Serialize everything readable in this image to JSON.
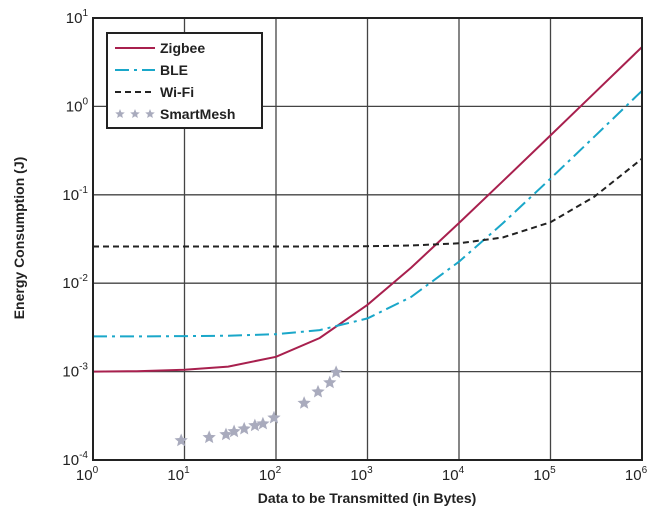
{
  "chart_data": {
    "type": "line",
    "xlabel": "Data to be Transmitted (in Bytes)",
    "ylabel": "Energy Consumption (J)",
    "xscale": "log",
    "yscale": "log",
    "xlim": [
      1,
      1000000
    ],
    "ylim": [
      0.0001,
      10
    ],
    "grid": true,
    "legend_position": "top-left",
    "x_ticks": [
      {
        "base": "10",
        "exp": "0"
      },
      {
        "base": "10",
        "exp": "1"
      },
      {
        "base": "10",
        "exp": "2"
      },
      {
        "base": "10",
        "exp": "3"
      },
      {
        "base": "10",
        "exp": "4"
      },
      {
        "base": "10",
        "exp": "5"
      },
      {
        "base": "10",
        "exp": "6"
      }
    ],
    "y_ticks": [
      {
        "base": "10",
        "exp": "1"
      },
      {
        "base": "10",
        "exp": "0"
      },
      {
        "base": "10",
        "exp": "-1"
      },
      {
        "base": "10",
        "exp": "-2"
      },
      {
        "base": "10",
        "exp": "-3"
      },
      {
        "base": "10",
        "exp": "-4"
      }
    ],
    "x": [
      1,
      3,
      10,
      30,
      100,
      300,
      1000,
      3000,
      10000,
      30000,
      100000,
      300000,
      1000000
    ],
    "series": [
      {
        "name": "Zigbee",
        "style": "solid",
        "color": "#a8204e",
        "values": [
          0.001,
          0.00101,
          0.00105,
          0.00114,
          0.00147,
          0.0024,
          0.0057,
          0.015,
          0.048,
          0.142,
          0.47,
          1.41,
          4.7
        ]
      },
      {
        "name": "BLE",
        "style": "dash-dot",
        "color": "#1aa7c9",
        "values": [
          0.0025,
          0.0025,
          0.00252,
          0.00255,
          0.00265,
          0.00295,
          0.004,
          0.007,
          0.0175,
          0.0475,
          0.1525,
          0.4525,
          1.5
        ]
      },
      {
        "name": "Wi-Fi",
        "style": "dashed",
        "color": "#222222",
        "values": [
          0.026,
          0.026,
          0.026,
          0.026,
          0.026,
          0.0261,
          0.0262,
          0.0267,
          0.0283,
          0.0329,
          0.049,
          0.095,
          0.256
        ]
      },
      {
        "name": "SmartMesh",
        "style": "star-markers",
        "color": "#a9abbd",
        "points": [
          [
            9.2,
            0.000166
          ],
          [
            18.6,
            0.00018
          ],
          [
            28.4,
            0.000194
          ],
          [
            34.8,
            0.00021
          ],
          [
            44.9,
            0.000225
          ],
          [
            58.8,
            0.000245
          ],
          [
            72,
            0.000257
          ],
          [
            95,
            0.0003
          ],
          [
            203,
            0.00044
          ],
          [
            288,
            0.00059
          ],
          [
            387,
            0.00075
          ],
          [
            454,
            0.00098
          ]
        ]
      }
    ]
  }
}
